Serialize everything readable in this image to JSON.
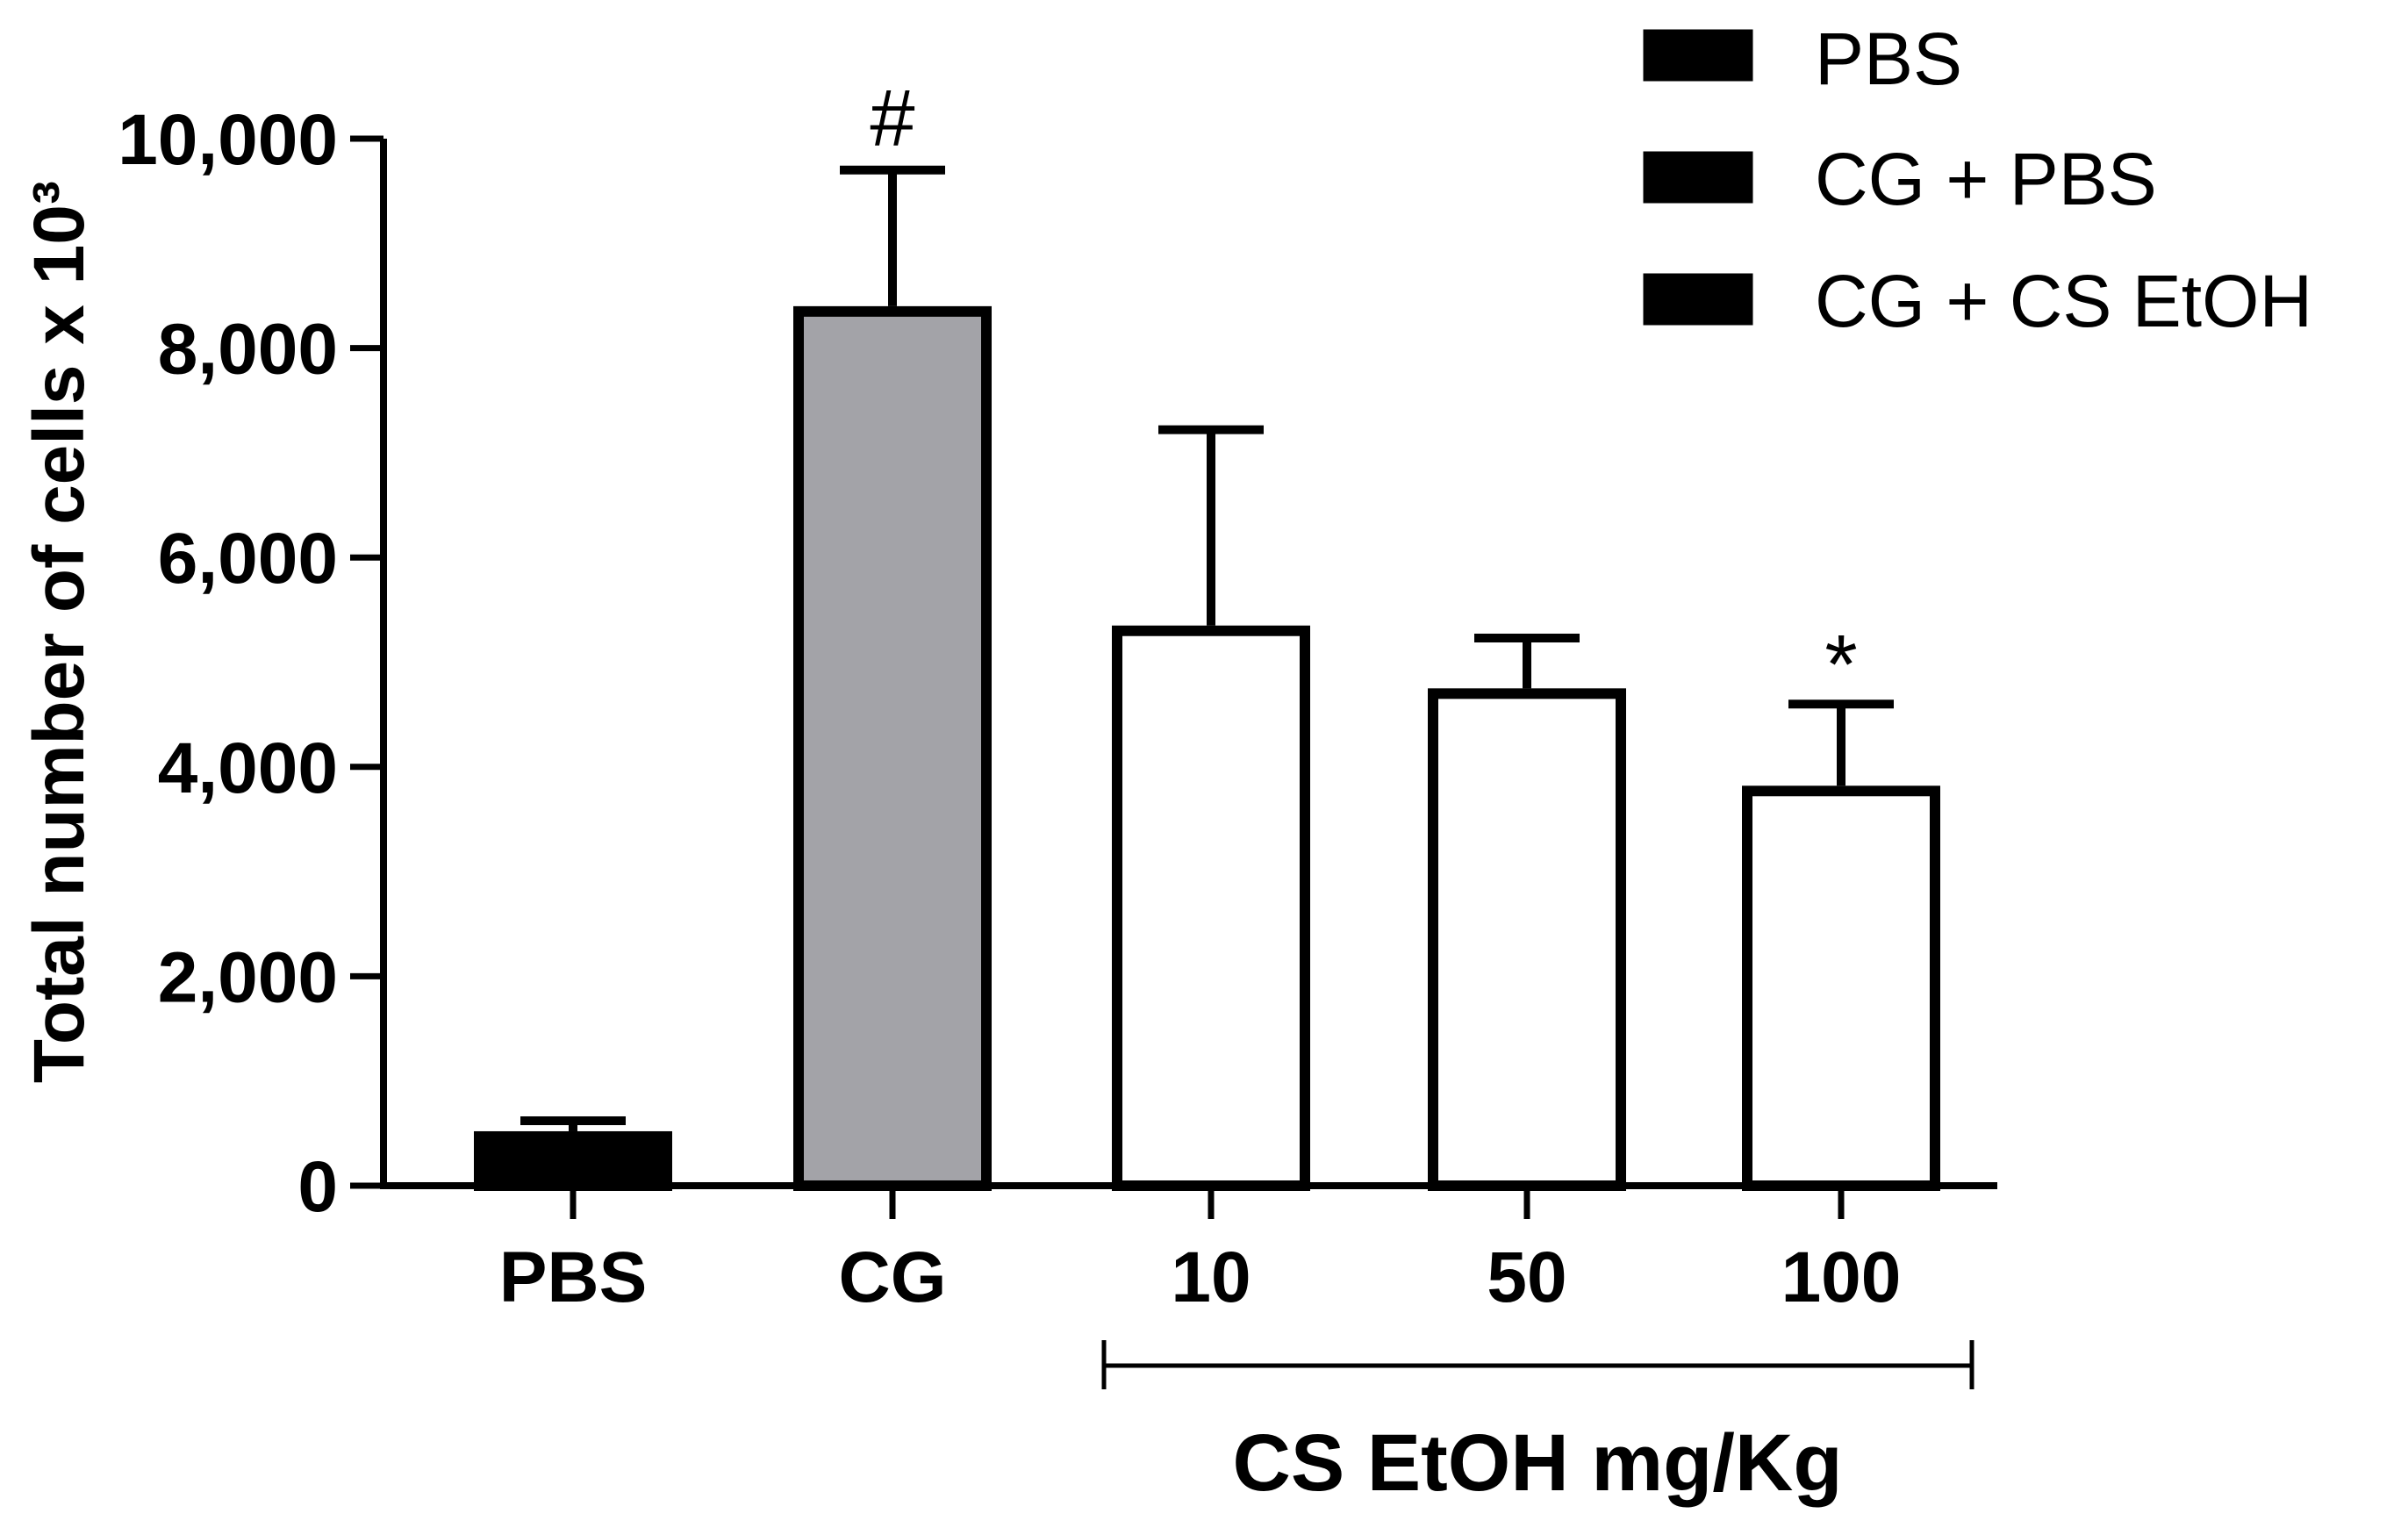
{
  "chart_data": {
    "type": "bar",
    "title": "",
    "ylabel": "Total number of cells x 10³",
    "ylim": [
      0,
      10000
    ],
    "yticks": [
      0,
      2000,
      4000,
      6000,
      8000,
      10000
    ],
    "ytick_labels": [
      "0",
      "2,000",
      "4,000",
      "6,000",
      "8,000",
      "10,000"
    ],
    "categories": [
      "PBS",
      "CG",
      "10",
      "50",
      "100"
    ],
    "values": [
      520,
      8400,
      5350,
      4750,
      3820
    ],
    "errors": [
      100,
      1300,
      1870,
      480,
      780
    ],
    "bar_series": [
      "PBS",
      "CG + PBS",
      "CG + CS EtOH",
      "CG + CS EtOH",
      "CG + CS EtOH"
    ],
    "annotations": [
      "",
      "#",
      "",
      "",
      "*"
    ],
    "group_label": "CS EtOH mg/Kg",
    "legend": {
      "position": "top-right",
      "entries": [
        {
          "label": "PBS",
          "fill": "#000000"
        },
        {
          "label": "CG + PBS",
          "fill": "#a3a3a8"
        },
        {
          "label": "CG + CS EtOH",
          "fill": "#ffffff"
        }
      ]
    }
  }
}
